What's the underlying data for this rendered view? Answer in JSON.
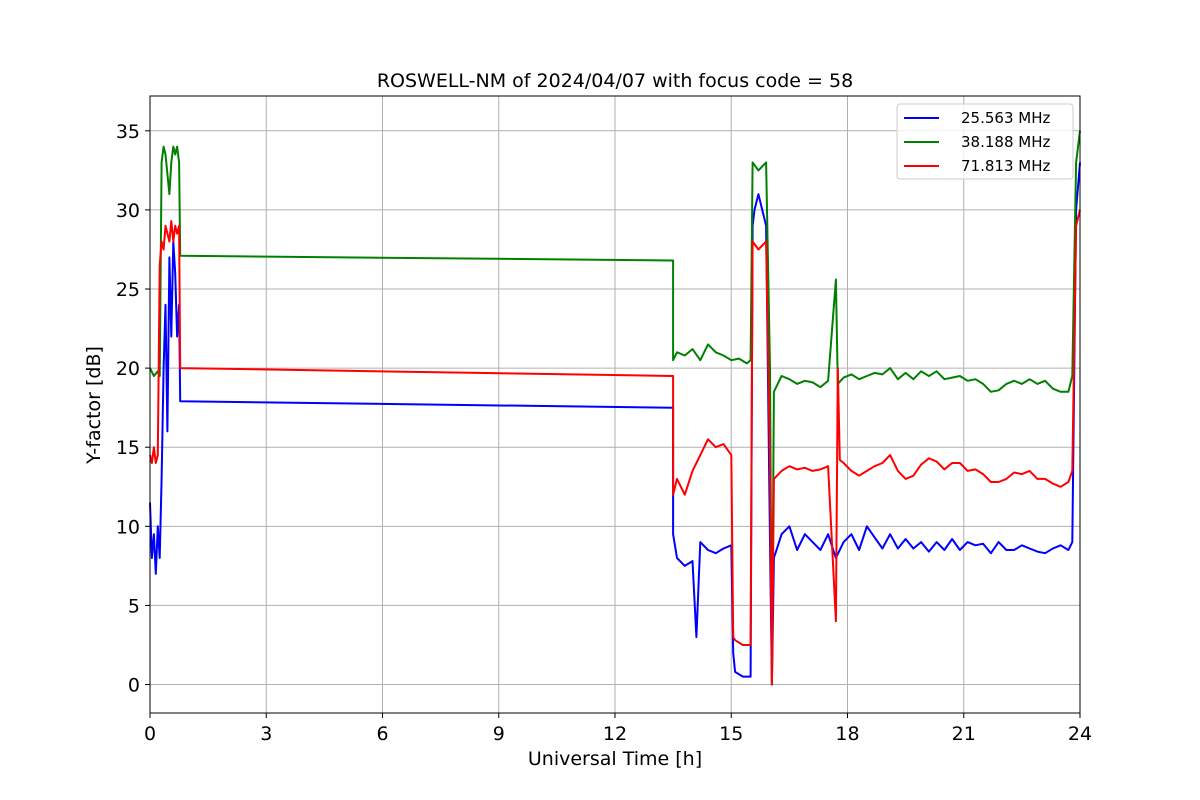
{
  "chart_data": {
    "type": "line",
    "title": "ROSWELL-NM of 2024/04/07 with focus code = 58",
    "xlabel": "Universal Time [h]",
    "ylabel": "Y-factor [dB]",
    "xlim": [
      0,
      24
    ],
    "ylim": [
      -1.8,
      37.2
    ],
    "xticks": [
      0,
      3,
      6,
      9,
      12,
      15,
      18,
      21,
      24
    ],
    "yticks": [
      0,
      5,
      10,
      15,
      20,
      25,
      30,
      35
    ],
    "grid": true,
    "legend_position": "top-right",
    "series": [
      {
        "name": "25.563 MHz",
        "color": "#0000ff",
        "points": [
          [
            0,
            11.5
          ],
          [
            0.05,
            8
          ],
          [
            0.1,
            9.5
          ],
          [
            0.15,
            7
          ],
          [
            0.2,
            10
          ],
          [
            0.25,
            8
          ],
          [
            0.3,
            13
          ],
          [
            0.35,
            20
          ],
          [
            0.4,
            24
          ],
          [
            0.45,
            16
          ],
          [
            0.5,
            27
          ],
          [
            0.55,
            22
          ],
          [
            0.6,
            28
          ],
          [
            0.65,
            26
          ],
          [
            0.7,
            22
          ],
          [
            0.75,
            24
          ],
          [
            0.78,
            17.9
          ],
          [
            13.5,
            17.5
          ],
          [
            13.5,
            9.5
          ],
          [
            13.6,
            8
          ],
          [
            13.8,
            7.5
          ],
          [
            14.0,
            7.8
          ],
          [
            14.1,
            3
          ],
          [
            14.2,
            9
          ],
          [
            14.4,
            8.5
          ],
          [
            14.6,
            8.3
          ],
          [
            14.8,
            8.6
          ],
          [
            15.0,
            8.8
          ],
          [
            15.05,
            2
          ],
          [
            15.1,
            0.8
          ],
          [
            15.3,
            0.5
          ],
          [
            15.5,
            0.5
          ],
          [
            15.55,
            29
          ],
          [
            15.6,
            30
          ],
          [
            15.7,
            31
          ],
          [
            15.9,
            29
          ],
          [
            16.0,
            9
          ],
          [
            16.05,
            0
          ],
          [
            16.1,
            8
          ],
          [
            16.3,
            9.5
          ],
          [
            16.5,
            10
          ],
          [
            16.7,
            8.5
          ],
          [
            16.9,
            9.5
          ],
          [
            17.1,
            9
          ],
          [
            17.3,
            8.5
          ],
          [
            17.5,
            9.5
          ],
          [
            17.7,
            8
          ],
          [
            17.9,
            9
          ],
          [
            18.1,
            9.5
          ],
          [
            18.3,
            8.5
          ],
          [
            18.5,
            10
          ],
          [
            18.7,
            9.3
          ],
          [
            18.9,
            8.6
          ],
          [
            19.1,
            9.5
          ],
          [
            19.3,
            8.6
          ],
          [
            19.5,
            9.2
          ],
          [
            19.7,
            8.6
          ],
          [
            19.9,
            9
          ],
          [
            20.1,
            8.4
          ],
          [
            20.3,
            9
          ],
          [
            20.5,
            8.5
          ],
          [
            20.7,
            9.2
          ],
          [
            20.9,
            8.5
          ],
          [
            21.1,
            9
          ],
          [
            21.3,
            8.8
          ],
          [
            21.5,
            8.9
          ],
          [
            21.7,
            8.3
          ],
          [
            21.9,
            9
          ],
          [
            22.1,
            8.5
          ],
          [
            22.3,
            8.5
          ],
          [
            22.5,
            8.8
          ],
          [
            22.7,
            8.6
          ],
          [
            22.9,
            8.4
          ],
          [
            23.1,
            8.3
          ],
          [
            23.3,
            8.6
          ],
          [
            23.5,
            8.8
          ],
          [
            23.7,
            8.5
          ],
          [
            23.8,
            9
          ],
          [
            23.9,
            30
          ],
          [
            24.0,
            33
          ]
        ]
      },
      {
        "name": "38.188 MHz",
        "color": "#008000",
        "points": [
          [
            0,
            20
          ],
          [
            0.1,
            19.5
          ],
          [
            0.2,
            19.8
          ],
          [
            0.25,
            19.5
          ],
          [
            0.3,
            33
          ],
          [
            0.35,
            34
          ],
          [
            0.4,
            33.5
          ],
          [
            0.5,
            31
          ],
          [
            0.55,
            33
          ],
          [
            0.6,
            34
          ],
          [
            0.65,
            33.5
          ],
          [
            0.7,
            34
          ],
          [
            0.75,
            33
          ],
          [
            0.78,
            27.1
          ],
          [
            13.5,
            26.8
          ],
          [
            13.5,
            20.5
          ],
          [
            13.6,
            21
          ],
          [
            13.8,
            20.8
          ],
          [
            14.0,
            21.2
          ],
          [
            14.2,
            20.5
          ],
          [
            14.4,
            21.5
          ],
          [
            14.6,
            21
          ],
          [
            14.8,
            20.8
          ],
          [
            15.0,
            20.5
          ],
          [
            15.2,
            20.6
          ],
          [
            15.4,
            20.3
          ],
          [
            15.5,
            20.5
          ],
          [
            15.55,
            33
          ],
          [
            15.7,
            32.5
          ],
          [
            15.9,
            33
          ],
          [
            16.0,
            20
          ],
          [
            16.05,
            0
          ],
          [
            16.1,
            18.5
          ],
          [
            16.2,
            19
          ],
          [
            16.3,
            19.5
          ],
          [
            16.5,
            19.3
          ],
          [
            16.7,
            19
          ],
          [
            16.9,
            19.2
          ],
          [
            17.1,
            19.1
          ],
          [
            17.3,
            18.8
          ],
          [
            17.5,
            19.2
          ],
          [
            17.7,
            25.6
          ],
          [
            17.75,
            19
          ],
          [
            17.9,
            19.4
          ],
          [
            18.1,
            19.6
          ],
          [
            18.3,
            19.3
          ],
          [
            18.5,
            19.5
          ],
          [
            18.7,
            19.7
          ],
          [
            18.9,
            19.6
          ],
          [
            19.1,
            20
          ],
          [
            19.3,
            19.3
          ],
          [
            19.5,
            19.7
          ],
          [
            19.7,
            19.3
          ],
          [
            19.9,
            19.8
          ],
          [
            20.1,
            19.5
          ],
          [
            20.3,
            19.8
          ],
          [
            20.5,
            19.3
          ],
          [
            20.7,
            19.4
          ],
          [
            20.9,
            19.5
          ],
          [
            21.1,
            19.2
          ],
          [
            21.3,
            19.3
          ],
          [
            21.5,
            19
          ],
          [
            21.7,
            18.5
          ],
          [
            21.9,
            18.6
          ],
          [
            22.1,
            19
          ],
          [
            22.3,
            19.2
          ],
          [
            22.5,
            19
          ],
          [
            22.7,
            19.3
          ],
          [
            22.9,
            19
          ],
          [
            23.1,
            19.2
          ],
          [
            23.3,
            18.7
          ],
          [
            23.5,
            18.5
          ],
          [
            23.7,
            18.5
          ],
          [
            23.8,
            19.5
          ],
          [
            23.9,
            33
          ],
          [
            24.0,
            35
          ]
        ]
      },
      {
        "name": "71.813 MHz",
        "color": "#ff0000",
        "points": [
          [
            0,
            14.5
          ],
          [
            0.05,
            14
          ],
          [
            0.1,
            15
          ],
          [
            0.15,
            14
          ],
          [
            0.2,
            14.5
          ],
          [
            0.25,
            26.5
          ],
          [
            0.3,
            28
          ],
          [
            0.35,
            27.5
          ],
          [
            0.4,
            29
          ],
          [
            0.5,
            28
          ],
          [
            0.55,
            29.3
          ],
          [
            0.6,
            28
          ],
          [
            0.65,
            29
          ],
          [
            0.7,
            28.5
          ],
          [
            0.75,
            29
          ],
          [
            0.78,
            20
          ],
          [
            13.5,
            19.5
          ],
          [
            13.5,
            12
          ],
          [
            13.6,
            13
          ],
          [
            13.8,
            12
          ],
          [
            14.0,
            13.5
          ],
          [
            14.2,
            14.5
          ],
          [
            14.4,
            15.5
          ],
          [
            14.6,
            15
          ],
          [
            14.8,
            15.2
          ],
          [
            15.0,
            14.5
          ],
          [
            15.05,
            3
          ],
          [
            15.1,
            2.8
          ],
          [
            15.3,
            2.5
          ],
          [
            15.5,
            2.5
          ],
          [
            15.55,
            28
          ],
          [
            15.7,
            27.5
          ],
          [
            15.9,
            28
          ],
          [
            16.0,
            14
          ],
          [
            16.05,
            0
          ],
          [
            16.1,
            13
          ],
          [
            16.3,
            13.5
          ],
          [
            16.5,
            13.8
          ],
          [
            16.7,
            13.6
          ],
          [
            16.9,
            13.7
          ],
          [
            17.1,
            13.5
          ],
          [
            17.3,
            13.6
          ],
          [
            17.5,
            13.8
          ],
          [
            17.7,
            4
          ],
          [
            17.75,
            20
          ],
          [
            17.8,
            14.2
          ],
          [
            17.9,
            14
          ],
          [
            18.1,
            13.5
          ],
          [
            18.3,
            13.2
          ],
          [
            18.5,
            13.5
          ],
          [
            18.7,
            13.8
          ],
          [
            18.9,
            14
          ],
          [
            19.1,
            14.5
          ],
          [
            19.3,
            13.5
          ],
          [
            19.5,
            13
          ],
          [
            19.7,
            13.2
          ],
          [
            19.9,
            13.9
          ],
          [
            20.1,
            14.3
          ],
          [
            20.3,
            14.1
          ],
          [
            20.5,
            13.6
          ],
          [
            20.7,
            14
          ],
          [
            20.9,
            14
          ],
          [
            21.1,
            13.5
          ],
          [
            21.3,
            13.6
          ],
          [
            21.5,
            13.3
          ],
          [
            21.7,
            12.8
          ],
          [
            21.9,
            12.8
          ],
          [
            22.1,
            13
          ],
          [
            22.3,
            13.4
          ],
          [
            22.5,
            13.3
          ],
          [
            22.7,
            13.5
          ],
          [
            22.9,
            13
          ],
          [
            23.1,
            13
          ],
          [
            23.3,
            12.7
          ],
          [
            23.5,
            12.5
          ],
          [
            23.7,
            12.8
          ],
          [
            23.8,
            13.5
          ],
          [
            23.9,
            29
          ],
          [
            24.0,
            30
          ]
        ]
      }
    ]
  }
}
